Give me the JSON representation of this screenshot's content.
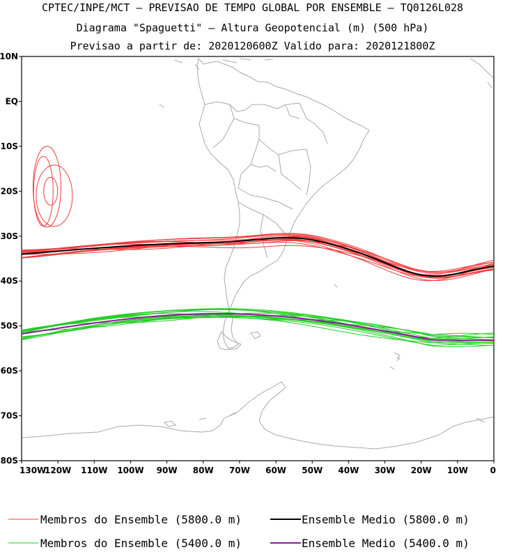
{
  "header": {
    "line1": "CPTEC/INPE/MCT — PREVISAO DE TEMPO GLOBAL POR ENSEMBLE — TQ0126L028",
    "line2": "Diagrama \"Spaguetti\" — Altura Geopotencial (m) (500 hPa)",
    "line3": "Previsao a partir de: 2020120600Z  Valido para: 2020121800Z"
  },
  "map": {
    "lon_range": [
      -130,
      0
    ],
    "lat_range": [
      -80,
      10
    ],
    "lat_labels": [
      "10N",
      "EQ",
      "10S",
      "20S",
      "30S",
      "40S",
      "50S",
      "60S",
      "70S",
      "80S"
    ],
    "lon_labels": [
      "130W",
      "120W",
      "110W",
      "100W",
      "90W",
      "80W",
      "70W",
      "60W",
      "50W",
      "40W",
      "30W",
      "20W",
      "10W",
      "0"
    ],
    "colors": {
      "member_5800": "#f03c3c",
      "mean_5800": "#000000",
      "member_5400": "#22cc22",
      "mean_5400": "#8a1a9e",
      "coast": "#a8a8a8"
    }
  },
  "legend": {
    "item1": "Membros do Ensemble (5800.0 m)",
    "item2": "Ensemble Medio (5800.0 m)",
    "item3": "Membros do Ensemble (5400.0 m)",
    "item4": "Ensemble Medio (5400.0 m)"
  }
}
